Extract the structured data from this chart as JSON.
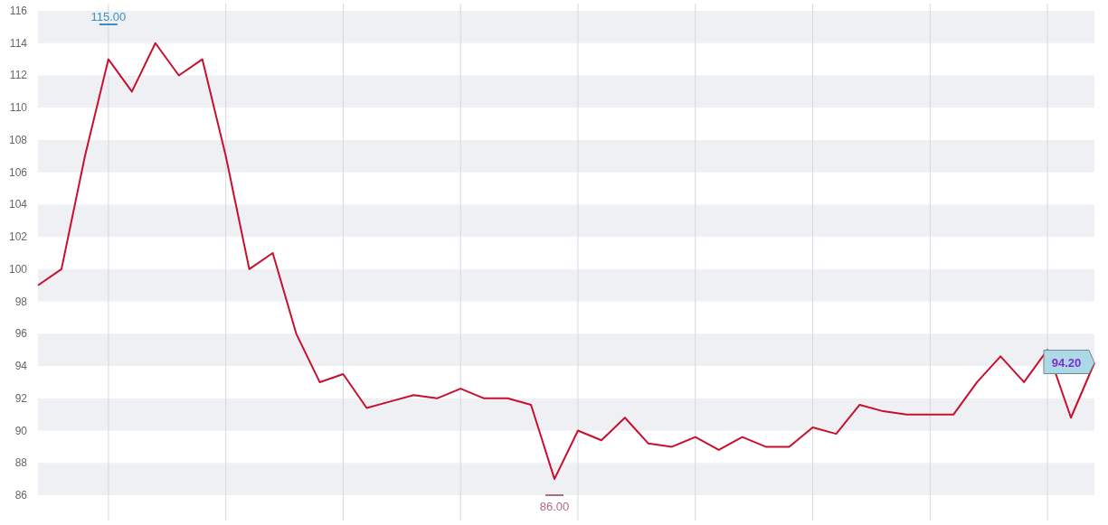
{
  "chart_data": {
    "type": "line",
    "categories": [
      null,
      null,
      null,
      null,
      null,
      null,
      null,
      null,
      null,
      null,
      null,
      null,
      null,
      null,
      null,
      null,
      null,
      null,
      null,
      null,
      null,
      null,
      null,
      null,
      null,
      null,
      null,
      null,
      null,
      null,
      null,
      null,
      null,
      null,
      null,
      null,
      null,
      null,
      null,
      null,
      null,
      null,
      null,
      null,
      null,
      null
    ],
    "series": [
      {
        "color": "#c8102e",
        "values": [
          99,
          100,
          107,
          113,
          111,
          114,
          112,
          113,
          107,
          100,
          101,
          96,
          93,
          93.5,
          91.4,
          91.8,
          92.2,
          92,
          92.6,
          92,
          92,
          91.6,
          87,
          90,
          89.4,
          90.8,
          89.2,
          89,
          89.6,
          88.8,
          89.6,
          89,
          89,
          90.2,
          89.8,
          91.6,
          91.2,
          91,
          91,
          91,
          93,
          94.6,
          93,
          95,
          90.8,
          94.2
        ],
        "value_labels": [
          null,
          null,
          null,
          null,
          null,
          null,
          null,
          null,
          null,
          null,
          null,
          null,
          null,
          null,
          null,
          null,
          null,
          null,
          null,
          null,
          null,
          null,
          null,
          null,
          null,
          null,
          null,
          null,
          null,
          null,
          null,
          null,
          null,
          null,
          null,
          null,
          null,
          null,
          null,
          null,
          null,
          null,
          null,
          null,
          null,
          "94.20"
        ]
      }
    ],
    "ylim": [
      86,
      116
    ],
    "yticks": [
      86,
      88,
      90,
      92,
      94,
      96,
      98,
      100,
      102,
      104,
      106,
      108,
      110,
      112,
      114,
      116
    ],
    "grid": true,
    "tick_labels": "y",
    "marker": "none",
    "line_style": "solid",
    "annotations": [
      "115.00",
      "86.00"
    ]
  }
}
